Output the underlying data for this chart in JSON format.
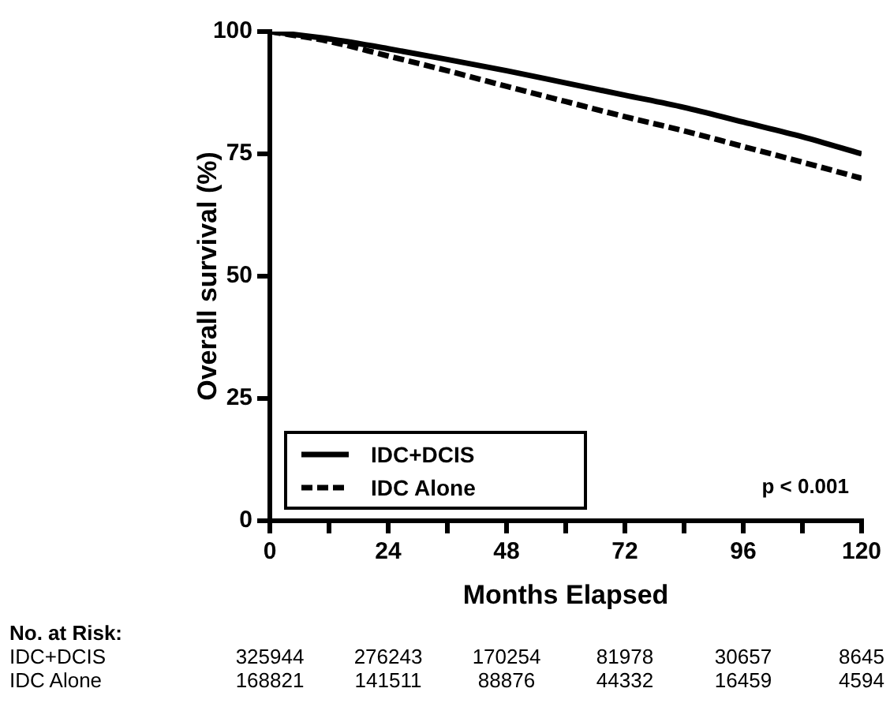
{
  "chart_data": {
    "type": "line",
    "xlabel": "Months Elapsed",
    "ylabel": "Overall survival (%)",
    "x": [
      0,
      12,
      24,
      36,
      48,
      60,
      72,
      84,
      96,
      108,
      120
    ],
    "series": [
      {
        "name": "IDC+DCIS",
        "color": "#000000",
        "line_style": "solid",
        "values": [
          100,
          98.5,
          96.5,
          94.3,
          92,
          89.5,
          87,
          84.5,
          81.5,
          78.5,
          75
        ]
      },
      {
        "name": "IDC Alone",
        "color": "#000000",
        "line_style": "dashed",
        "values": [
          100,
          98,
          95,
          92,
          88.8,
          85.7,
          82.6,
          79.7,
          76.5,
          73.3,
          70
        ]
      }
    ],
    "xlim": [
      0,
      120
    ],
    "xticks": [
      0,
      {
        "value": 12,
        "label": null
      },
      24,
      {
        "value": 36,
        "label": null
      },
      48,
      {
        "value": 60,
        "label": null
      },
      72,
      {
        "value": 84,
        "label": null
      },
      96,
      {
        "value": 108,
        "label": null
      },
      120
    ],
    "ylim": [
      0,
      100
    ],
    "yticks": [
      0,
      25,
      50,
      75,
      100
    ],
    "grid": false,
    "marker": "none",
    "legend": "bottom left",
    "annotations": [
      "p < 0.001",
      "No. at Risk:",
      "IDC+DCIS",
      "325944",
      "276243",
      "170254",
      "81978",
      "30657",
      "8645",
      "IDC Alone",
      "168821",
      "141511",
      "88876",
      "44332",
      "16459",
      "4594"
    ]
  }
}
